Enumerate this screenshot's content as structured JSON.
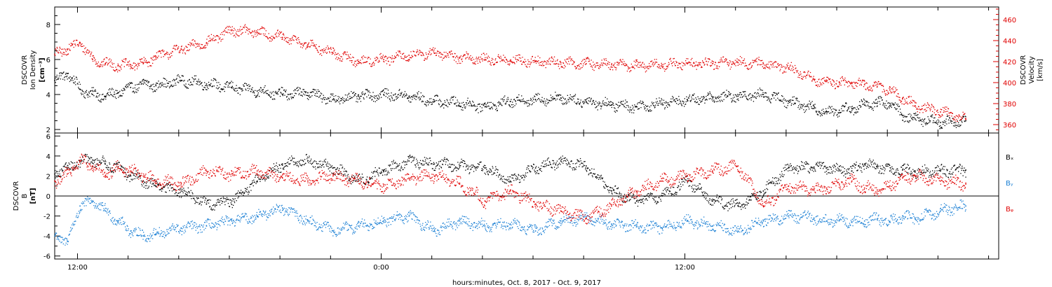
{
  "xlabel": "hours:minutes, Oct.  8, 2017 - Oct.  9, 2017",
  "x_ticks": [
    "12:00",
    "0:00",
    "12:00"
  ],
  "colors": {
    "black": "#000000",
    "red": "#e00000",
    "blue": "#1a7fd4"
  },
  "chart_data": [
    {
      "type": "scatter",
      "ylabel_left": [
        "DSCOVR",
        "Ion Density",
        "[cm⁻³]"
      ],
      "ylabel_right": [
        "DSCOVR",
        "Velocity",
        "[km/s]"
      ],
      "ylim": [
        1.8,
        9.0
      ],
      "y_ticks": [
        "2",
        "4",
        "6",
        "8"
      ],
      "ylim_right": [
        352,
        472
      ],
      "y2_ticks": [
        "360",
        "380",
        "400",
        "420",
        "440",
        "460"
      ],
      "x_range_hours": [
        0,
        37.3
      ],
      "series": [
        {
          "axis": "left",
          "color": "#000000",
          "x": [
            0,
            0.5,
            1,
            1.5,
            2,
            2.5,
            3,
            3.5,
            4,
            5,
            6,
            7,
            8,
            9,
            10,
            11,
            12,
            13,
            14,
            15,
            16,
            17,
            18,
            19,
            20,
            21,
            22,
            23,
            24,
            25,
            26,
            27,
            28,
            29,
            30,
            30.5,
            31,
            31.5,
            32,
            32.5,
            33,
            33.5,
            34,
            35,
            36
          ],
          "values": [
            4.8,
            5.2,
            4.3,
            4.0,
            3.9,
            4.1,
            4.4,
            4.6,
            4.5,
            4.8,
            4.6,
            4.4,
            4.2,
            4.0,
            4.1,
            3.7,
            3.9,
            4.0,
            3.9,
            3.6,
            3.5,
            3.3,
            3.6,
            3.7,
            3.8,
            3.6,
            3.4,
            3.3,
            3.5,
            3.7,
            3.8,
            3.9,
            4.0,
            3.6,
            3.2,
            3.0,
            3.1,
            3.2,
            3.4,
            3.5,
            3.5,
            2.8,
            2.6,
            2.4,
            2.5
          ]
        },
        {
          "axis": "right",
          "color": "#e00000",
          "x": [
            0,
            0.5,
            1,
            1.5,
            2,
            2.5,
            3,
            3.5,
            4,
            5,
            6,
            7,
            8,
            9,
            10,
            11,
            12,
            13,
            14,
            15,
            16,
            17,
            18,
            19,
            20,
            21,
            22,
            23,
            24,
            25,
            26,
            27,
            28,
            29,
            30,
            30.5,
            31,
            31.5,
            32,
            32.5,
            33,
            33.5,
            34,
            35,
            36
          ],
          "values": [
            427,
            432,
            438,
            422,
            418,
            416,
            417,
            418,
            425,
            432,
            438,
            450,
            448,
            443,
            436,
            428,
            420,
            422,
            426,
            428,
            424,
            422,
            421,
            420,
            419,
            418,
            417,
            416,
            417,
            418,
            418,
            419,
            418,
            414,
            403,
            401,
            400,
            399,
            398,
            396,
            393,
            385,
            378,
            372,
            365
          ]
        }
      ]
    },
    {
      "type": "scatter",
      "ylabel_left": [
        "DSCOVR",
        "B",
        "[nT]"
      ],
      "ylim": [
        -6.3,
        6.3
      ],
      "y_ticks": [
        "6",
        "4",
        "2",
        "0",
        "-2",
        "-4",
        "-6"
      ],
      "x_range_hours": [
        0,
        37.3
      ],
      "series": [
        {
          "name": "Bₓ",
          "color": "#000000",
          "x": [
            0,
            0.5,
            1,
            1.5,
            2,
            2.5,
            3,
            3.5,
            4,
            5,
            6,
            7,
            8,
            9,
            10,
            11,
            12,
            13,
            14,
            15,
            16,
            17,
            18,
            19,
            20,
            21,
            22,
            23,
            24,
            25,
            26,
            27,
            28,
            29,
            30,
            30.5,
            31,
            31.5,
            32,
            32.5,
            33,
            33.5,
            34,
            35,
            36
          ],
          "values": [
            2.2,
            2.8,
            3.4,
            3.6,
            3.2,
            2.8,
            2.0,
            1.5,
            1.0,
            0.5,
            -0.8,
            -0.5,
            1.5,
            3.2,
            3.5,
            2.8,
            1.5,
            2.5,
            3.5,
            3.2,
            3.0,
            2.8,
            1.5,
            2.8,
            3.5,
            3.0,
            0.5,
            -0.5,
            0.0,
            1.5,
            -0.5,
            -1.0,
            0.5,
            2.8,
            2.9,
            2.8,
            2.6,
            2.5,
            3.2,
            3.0,
            2.5,
            2.6,
            2.4,
            2.5,
            2.6
          ]
        },
        {
          "name": "Bᵧ",
          "color": "#1a7fd4",
          "x": [
            0,
            0.5,
            1,
            1.5,
            2,
            2.5,
            3,
            3.5,
            4,
            5,
            6,
            7,
            8,
            9,
            10,
            11,
            12,
            13,
            14,
            15,
            16,
            17,
            18,
            19,
            20,
            21,
            22,
            23,
            24,
            25,
            26,
            27,
            28,
            29,
            30,
            30.5,
            31,
            31.5,
            32,
            32.5,
            33,
            33.5,
            34,
            35,
            36
          ],
          "values": [
            -4.0,
            -4.5,
            -1.0,
            -0.5,
            -1.5,
            -2.5,
            -3.5,
            -4.0,
            -3.8,
            -3.2,
            -3.0,
            -2.5,
            -2.0,
            -1.2,
            -2.5,
            -3.5,
            -3.0,
            -2.5,
            -2.0,
            -3.5,
            -2.5,
            -3.0,
            -2.8,
            -3.5,
            -2.5,
            -2.2,
            -2.8,
            -3.0,
            -3.2,
            -2.5,
            -3.0,
            -3.5,
            -2.5,
            -2.0,
            -2.2,
            -2.5,
            -2.4,
            -2.6,
            -2.5,
            -2.3,
            -2.6,
            -2.0,
            -2.3,
            -1.5,
            -1.0
          ]
        },
        {
          "name": "Bᵩ",
          "color": "#e00000",
          "x": [
            0,
            0.5,
            1,
            1.5,
            2,
            2.5,
            3,
            3.5,
            4,
            5,
            6,
            7,
            8,
            9,
            10,
            11,
            12,
            13,
            14,
            15,
            16,
            17,
            18,
            19,
            20,
            21,
            22,
            23,
            24,
            25,
            26,
            27,
            28,
            29,
            30,
            30.5,
            31,
            31.5,
            32,
            32.5,
            33,
            33.5,
            34,
            35,
            36
          ],
          "values": [
            1.5,
            2.2,
            3.5,
            3.0,
            2.0,
            2.8,
            2.5,
            2.0,
            1.5,
            1.2,
            2.5,
            2.2,
            2.5,
            1.8,
            1.5,
            2.0,
            1.5,
            1.0,
            1.8,
            2.0,
            1.2,
            -0.5,
            0.5,
            -0.8,
            -1.5,
            -2.2,
            -1.0,
            0.5,
            1.5,
            2.0,
            2.5,
            3.0,
            -1.0,
            1.0,
            0.6,
            0.8,
            1.2,
            1.5,
            0.8,
            0.6,
            1.0,
            1.8,
            2.0,
            1.5,
            1.2
          ]
        }
      ]
    }
  ]
}
